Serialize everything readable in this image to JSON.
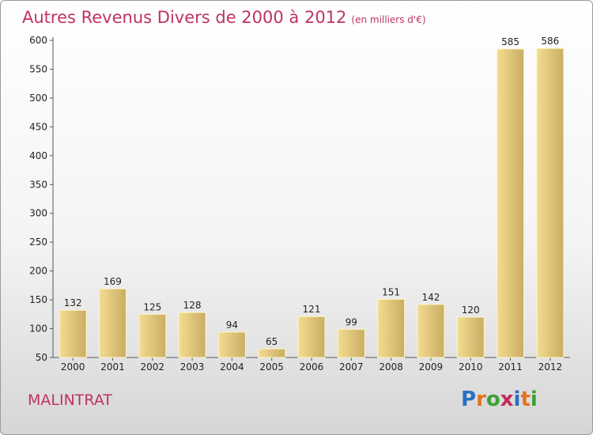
{
  "title": "Autres Revenus Divers de 2000 à 2012",
  "subtitle": "(en milliers d'€)",
  "city": "MALINTRAT",
  "logo": {
    "text": "Proxiti",
    "letters": [
      "P",
      "r",
      "o",
      "x",
      "i",
      "t",
      "i"
    ],
    "colors": [
      "#2a6fc2",
      "#e8731e",
      "#3aa136",
      "#c22a5a",
      "#2a6fc2",
      "#e8731e",
      "#3aa136"
    ]
  },
  "colors": {
    "title": "#c0335f",
    "bar_light": "#f7e3a0",
    "bar_dark": "#cdb36a"
  },
  "chart_data": {
    "type": "bar",
    "title": "Autres Revenus Divers de 2000 à 2012",
    "subtitle": "(en milliers d'€)",
    "categories": [
      "2000",
      "2001",
      "2002",
      "2003",
      "2004",
      "2005",
      "2006",
      "2007",
      "2008",
      "2009",
      "2010",
      "2011",
      "2012"
    ],
    "values": [
      132,
      169,
      125,
      128,
      94,
      65,
      121,
      99,
      151,
      142,
      120,
      585,
      586
    ],
    "ylim": [
      50,
      600
    ],
    "yticks": [
      50,
      100,
      150,
      200,
      250,
      300,
      350,
      400,
      450,
      500,
      550,
      600
    ],
    "grid": false,
    "legend": "none"
  }
}
